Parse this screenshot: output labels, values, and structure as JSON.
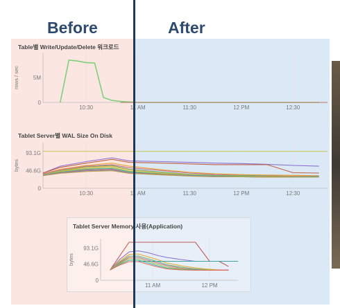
{
  "headings": {
    "before": "Before",
    "after": "After"
  },
  "colors": {
    "before_tint": "#fbe6e2",
    "after_tint": "#dbe9f6",
    "divider": "#1f3a57",
    "heading": "#2d4a6e",
    "write_line": "#7ed07a"
  },
  "panel1": {
    "title": "Table별 Write/Update/Delete 워크로드",
    "ylabel": "rows / sec",
    "y_ticks": [
      "5M",
      "0"
    ],
    "x_ticks": [
      "10:30",
      "11 AM",
      "11:30",
      "12 PM",
      "12:30"
    ]
  },
  "panel2": {
    "title": "Tablet Server별 WAL Size On Disk",
    "ylabel": "bytes",
    "y_ticks": [
      "93.1G",
      "46.6G",
      "0"
    ],
    "x_ticks": [
      "10:30",
      "11 AM",
      "11:30",
      "12 PM",
      "12:30"
    ]
  },
  "panel3": {
    "title": "Tablet Server Memory 사용(Application)",
    "ylabel": "bytes",
    "y_ticks": [
      "93.1G",
      "46.6G",
      "0"
    ],
    "x_ticks": [
      "11 AM",
      "12 PM"
    ]
  },
  "chart_data": [
    {
      "type": "line",
      "title": "Table별 Write/Update/Delete 워크로드",
      "ylabel": "rows / sec",
      "x": [
        "10:15",
        "10:20",
        "10:25",
        "10:30",
        "10:35",
        "10:40",
        "10:45",
        "10:50",
        "11:00",
        "11:30",
        "12:00",
        "12:30",
        "12:45"
      ],
      "series": [
        {
          "values": [
            0,
            8.5,
            8.3,
            8.0,
            7.9,
            1.0,
            0.4,
            0.2,
            0,
            0,
            0,
            0,
            0
          ]
        }
      ],
      "yunit": "M",
      "ylim": [
        0,
        10
      ]
    },
    {
      "type": "line",
      "title": "Tablet Server별 WAL Size On Disk",
      "ylabel": "bytes",
      "x": [
        "10:05",
        "10:15",
        "10:30",
        "10:45",
        "10:55",
        "11:15",
        "11:30",
        "11:45",
        "12:00",
        "12:15",
        "12:30",
        "12:45"
      ],
      "series": [
        {
          "values": [
            40,
            58,
            70,
            80,
            72,
            70,
            68,
            66,
            65,
            63,
            60,
            58
          ]
        },
        {
          "values": [
            40,
            55,
            66,
            76,
            68,
            66,
            64,
            62,
            62,
            62,
            41,
            40
          ]
        },
        {
          "values": [
            38,
            50,
            60,
            66,
            58,
            48,
            42,
            38,
            36,
            35,
            34,
            33
          ]
        },
        {
          "values": [
            38,
            48,
            58,
            62,
            54,
            46,
            40,
            36,
            34,
            33,
            32,
            32
          ]
        },
        {
          "values": [
            36,
            46,
            56,
            60,
            50,
            42,
            37,
            34,
            33,
            32,
            31,
            31
          ]
        },
        {
          "values": [
            36,
            45,
            55,
            58,
            48,
            40,
            36,
            33,
            32,
            31,
            31,
            30
          ]
        },
        {
          "values": [
            35,
            44,
            52,
            55,
            45,
            38,
            35,
            33,
            32,
            31,
            30,
            30
          ]
        },
        {
          "values": [
            35,
            42,
            50,
            52,
            43,
            37,
            34,
            32,
            31,
            30,
            30,
            30
          ]
        },
        {
          "values": [
            34,
            41,
            48,
            50,
            41,
            36,
            33,
            31,
            30,
            30,
            29,
            29
          ]
        },
        {
          "values": [
            34,
            40,
            46,
            48,
            40,
            35,
            33,
            31,
            30,
            29,
            29,
            29
          ]
        },
        {
          "values": [
            33,
            39,
            44,
            46,
            39,
            35,
            32,
            30,
            30,
            29,
            29,
            29
          ]
        }
      ],
      "ylim": [
        0,
        120
      ]
    },
    {
      "type": "line",
      "title": "Tablet Server Memory 사용(Application)",
      "ylabel": "bytes",
      "x": [
        "10:15",
        "10:25",
        "10:35",
        "10:45",
        "10:55",
        "11:05",
        "11:15",
        "11:30",
        "11:45",
        "12:00",
        "12:10",
        "12:20"
      ],
      "series": [
        {
          "values": [
            30,
            70,
            110,
            110,
            110,
            110,
            110,
            110,
            110,
            55,
            55,
            40
          ]
        },
        {
          "values": [
            30,
            60,
            82,
            85,
            80,
            72,
            66,
            60,
            55,
            55,
            55,
            55
          ]
        },
        {
          "values": [
            30,
            55,
            75,
            76,
            68,
            60,
            50,
            42,
            36,
            32,
            30,
            30
          ]
        },
        {
          "values": [
            30,
            52,
            70,
            70,
            62,
            54,
            45,
            38,
            33,
            30,
            30,
            30
          ]
        },
        {
          "values": [
            30,
            50,
            66,
            66,
            58,
            50,
            42,
            35,
            31,
            30,
            30,
            30
          ]
        },
        {
          "values": [
            30,
            48,
            62,
            62,
            54,
            46,
            38,
            33,
            30,
            30,
            29,
            29
          ]
        },
        {
          "values": [
            30,
            46,
            58,
            58,
            50,
            42,
            35,
            31,
            30,
            29,
            29,
            29
          ]
        },
        {
          "values": [
            30,
            44,
            54,
            54,
            46,
            39,
            33,
            30,
            29,
            29,
            29,
            29
          ]
        }
      ],
      "ylim": [
        0,
        120
      ]
    }
  ]
}
